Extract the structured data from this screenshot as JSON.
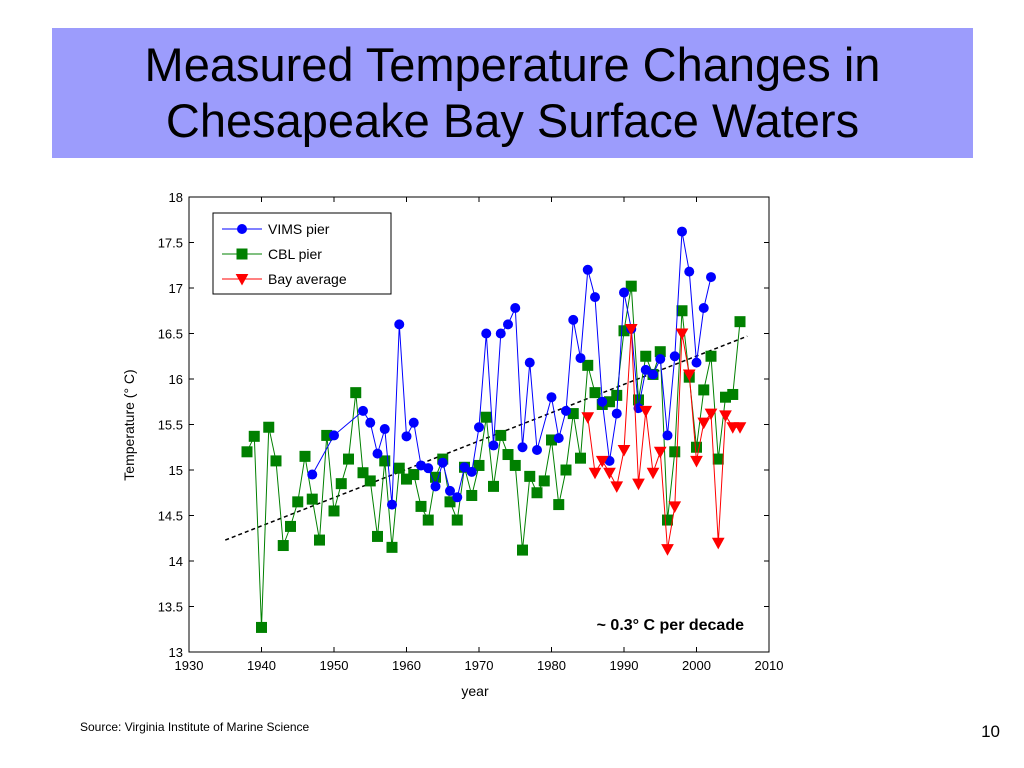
{
  "slide": {
    "title": "Measured Temperature Changes in\nChesapeake Bay Surface Waters",
    "source": "Source:  Virginia Institute of Marine Science",
    "page_number": "10"
  },
  "chart_data": {
    "type": "line",
    "xlabel": "year",
    "ylabel": "Temperature (° C)",
    "xlim": [
      1930,
      2010
    ],
    "ylim": [
      13,
      18
    ],
    "xticks": [
      1930,
      1940,
      1950,
      1960,
      1970,
      1980,
      1990,
      2000,
      2010
    ],
    "yticks": [
      13,
      13.5,
      14,
      14.5,
      15,
      15.5,
      16,
      16.5,
      17,
      17.5,
      18
    ],
    "grid": false,
    "legend_placement": "top-left",
    "annotation": "~ 0.3° C per decade",
    "series": [
      {
        "name": "VIMS pier",
        "color": "#0000ff",
        "marker": "circle",
        "x": [
          1947,
          1950,
          1954,
          1955,
          1956,
          1957,
          1958,
          1959,
          1960,
          1961,
          1962,
          1963,
          1964,
          1965,
          1966,
          1967,
          1968,
          1969,
          1970,
          1971,
          1972,
          1973,
          1974,
          1975,
          1976,
          1977,
          1978,
          1980,
          1981,
          1982,
          1983,
          1984,
          1985,
          1986,
          1987,
          1988,
          1989,
          1990,
          1991,
          1992,
          1993,
          1994,
          1995,
          1996,
          1997,
          1998,
          1999,
          2000,
          2001,
          2002
        ],
        "y": [
          14.95,
          15.38,
          15.65,
          15.52,
          15.18,
          15.45,
          14.62,
          16.6,
          15.37,
          15.52,
          15.05,
          15.02,
          14.82,
          15.08,
          14.77,
          14.7,
          15.03,
          14.98,
          15.47,
          16.5,
          15.27,
          16.5,
          16.6,
          16.78,
          15.25,
          16.18,
          15.22,
          15.8,
          15.35,
          15.65,
          16.65,
          16.23,
          17.2,
          16.9,
          15.75,
          15.1,
          15.62,
          16.95,
          16.55,
          15.68,
          16.1,
          16.05,
          16.22,
          15.38,
          16.25,
          17.62,
          17.18,
          16.18,
          16.78,
          17.12
        ]
      },
      {
        "name": "CBL pier",
        "color": "#008000",
        "marker": "square",
        "x": [
          1938,
          1939,
          1940,
          1941,
          1942,
          1943,
          1944,
          1945,
          1946,
          1947,
          1948,
          1949,
          1950,
          1951,
          1952,
          1953,
          1954,
          1955,
          1956,
          1957,
          1958,
          1959,
          1960,
          1961,
          1962,
          1963,
          1964,
          1965,
          1966,
          1967,
          1968,
          1969,
          1970,
          1971,
          1972,
          1973,
          1974,
          1975,
          1976,
          1977,
          1978,
          1979,
          1980,
          1981,
          1982,
          1983,
          1984,
          1985,
          1986,
          1987,
          1988,
          1989,
          1990,
          1991,
          1992,
          1993,
          1994,
          1995,
          1996,
          1997,
          1998,
          1999,
          2000,
          2001,
          2002,
          2003,
          2004,
          2005,
          2006
        ],
        "y": [
          15.2,
          15.37,
          13.27,
          15.47,
          15.1,
          14.17,
          14.38,
          14.65,
          15.15,
          14.68,
          14.23,
          15.38,
          14.55,
          14.85,
          15.12,
          15.85,
          14.97,
          14.88,
          14.27,
          15.1,
          14.15,
          15.02,
          14.9,
          14.95,
          14.6,
          14.45,
          14.92,
          15.12,
          14.65,
          14.45,
          15.03,
          14.72,
          15.05,
          15.58,
          14.82,
          15.38,
          15.17,
          15.05,
          14.12,
          14.93,
          14.75,
          14.88,
          15.33,
          14.62,
          15.0,
          15.62,
          15.13,
          16.15,
          15.85,
          15.72,
          15.75,
          15.82,
          16.53,
          17.02,
          15.77,
          16.25,
          16.05,
          16.3,
          14.45,
          15.2,
          16.75,
          16.02,
          15.25,
          15.88,
          16.25,
          15.12,
          15.8,
          15.83,
          16.63
        ]
      },
      {
        "name": "Bay average",
        "color": "#ff0000",
        "marker": "triangle-down",
        "x": [
          1985,
          1986,
          1987,
          1988,
          1989,
          1990,
          1991,
          1992,
          1993,
          1994,
          1995,
          1996,
          1997,
          1998,
          1999,
          2000,
          2001,
          2002,
          2003,
          2004,
          2005,
          2006
        ],
        "y": [
          15.58,
          14.97,
          15.1,
          14.97,
          14.82,
          15.22,
          16.55,
          14.85,
          15.65,
          14.97,
          15.2,
          14.13,
          14.6,
          16.5,
          16.05,
          15.1,
          15.52,
          15.62,
          14.2,
          15.6,
          15.47,
          15.47
        ]
      }
    ],
    "trend_line": {
      "style": "dashed",
      "color": "#000000",
      "x": [
        1935,
        2007
      ],
      "y": [
        14.23,
        16.47
      ]
    }
  }
}
